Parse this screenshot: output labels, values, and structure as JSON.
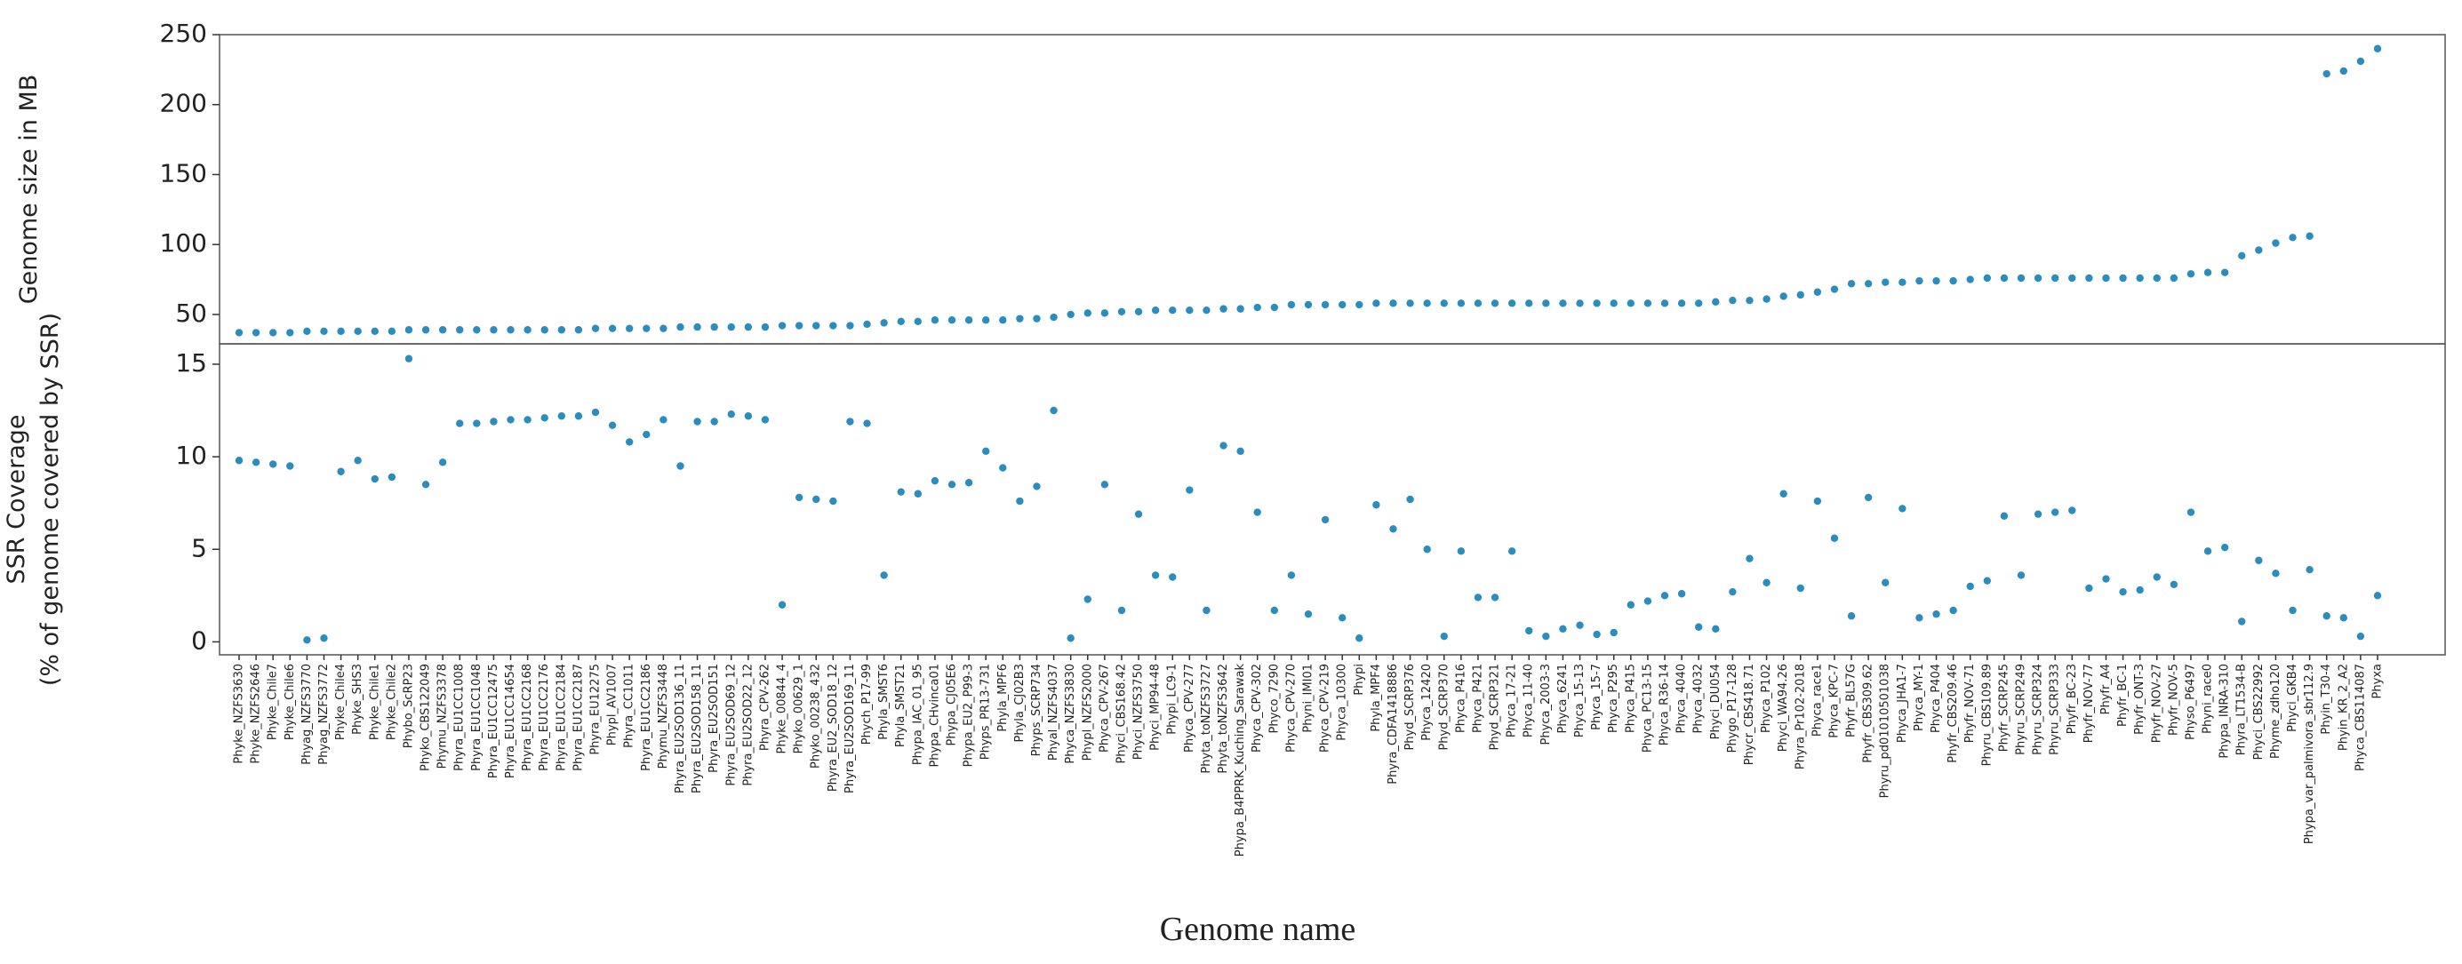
{
  "chart_data": [
    {
      "type": "scatter",
      "ylabel": "Genome size in MB",
      "color": "#2b8cbe",
      "ylim": [
        29,
        250
      ],
      "yticks": [
        50,
        100,
        150,
        200,
        250
      ],
      "values": [
        37,
        37,
        37,
        37,
        38,
        38,
        38,
        38,
        38,
        38,
        39,
        39,
        39,
        39,
        39,
        39,
        39,
        39,
        39,
        39,
        39,
        40,
        40,
        40,
        40,
        40,
        41,
        41,
        41,
        41,
        41,
        41,
        42,
        42,
        42,
        42,
        42,
        43,
        44,
        45,
        45,
        46,
        46,
        46,
        46,
        46,
        47,
        47,
        48,
        50,
        51,
        51,
        52,
        52,
        53,
        53,
        53,
        53,
        54,
        54,
        55,
        55,
        57,
        57,
        57,
        57,
        57,
        58,
        58,
        58,
        58,
        58,
        58,
        58,
        58,
        58,
        58,
        58,
        58,
        58,
        58,
        58,
        58,
        58,
        58,
        58,
        58,
        59,
        60,
        60,
        61,
        63,
        64,
        66,
        68,
        72,
        72,
        73,
        73,
        74,
        74,
        74,
        75,
        76,
        76,
        76,
        76,
        76,
        76,
        76,
        76,
        76,
        76,
        76,
        76,
        79,
        80,
        80,
        92,
        96,
        101,
        105,
        106,
        222,
        224,
        231,
        240
      ]
    },
    {
      "type": "scatter",
      "ylabel": [
        "SSR Coverage",
        "(% of genome covered by SSR)"
      ],
      "xlabel": "Genome name",
      "color": "#2b8cbe",
      "ylim": [
        -0.7,
        16.1
      ],
      "yticks": [
        0,
        5,
        10,
        15
      ],
      "categories": [
        "Phyke_NZFS3630",
        "Phyke_NZFS2646",
        "Phyke_Chile7",
        "Phyke_Chile6",
        "Phyag_NZFS3770",
        "Phyag_NZFS3772",
        "Phyke_Chile4",
        "Phyke_SHS3",
        "Phyke_Chile1",
        "Phyke_Chile2",
        "Phybo_ScRP23",
        "Phyko_CBS122049",
        "Phymu_NZFS3378",
        "Phyra_EU1CC1008",
        "Phyra_EU1CC1048",
        "Phyra_EU1CC12475",
        "Phyra_EU1CC14654",
        "Phyra_EU1CC2168",
        "Phyra_EU1CC2176",
        "Phyra_EU1CC2184",
        "Phyra_EU1CC2187",
        "Phyra_EU12275",
        "Phypl_AV1007",
        "Phyra_CC1011",
        "Phyra_EU1CC2186",
        "Phymu_NZFS3448",
        "Phyra_EU2SOD136_11",
        "Phyra_EU2SOD158_11",
        "Phyra_EU2SOD151",
        "Phyra_EU2SOD69_12",
        "Phyra_EU2SOD22_12",
        "Phyra_CPV-262",
        "Phyke_00844_4",
        "Phyko_00629_1",
        "Phyko_00238_432",
        "Phyra_EU2_SOD18_12",
        "Phyra_EU2SOD169_11",
        "Phych_P17-99",
        "Phyla_SMST6",
        "Phyla_SMST21",
        "Phypa_IAC_01_95",
        "Phypa_CHvinca01",
        "Phypa_CJ05E6",
        "Phypa_EU2_P99-3",
        "Phyps_PR13-731",
        "Phyla_MPF6",
        "Phyla_CJ02B3",
        "Phyps_SCRP734",
        "Phyal_NZFS4037",
        "Phyca_NZFS3830",
        "Phypl_NZFS2000",
        "Phyca_CPV-267",
        "Phyci_CBS168.42",
        "Phyci_NZFS3750",
        "Phyci_MP94-48",
        "Phypi_LC9-1",
        "Phyca_CPV-277",
        "Phyta_toNZFS3727",
        "Phyta_toNZFS3642",
        "Phypa_B4PPRK_Kuching_Sarawak",
        "Phyca_CPV-302",
        "Phyco_7290",
        "Phyca_CPV-270",
        "Phyni_IMI01",
        "Phyca_CPV-219",
        "Phyca_10300",
        "Phypi",
        "Phyla_MPF4",
        "Phyra_CDFA1418886",
        "Phyd_SCRP376",
        "Phyca_12420",
        "Phyd_SCRP370",
        "Phyca_P416",
        "Phyca_P421",
        "Phyd_SCRP321",
        "Phyca_17-21",
        "Phyca_11-40",
        "Phyca_2003-3",
        "Phyca_6241",
        "Phyca_15-13",
        "Phyca_15-7",
        "Phyca_P295",
        "Phyca_P415",
        "Phyca_PC13-15",
        "Phyca_R36-14",
        "Phyca_4040",
        "Phyca_4032",
        "Phyci_DU054",
        "Phygo_P17-128",
        "Phycr_CBS418.71",
        "Phyca_P102",
        "Phyci_WA94.26",
        "Phyra_Pr102-2018",
        "Phyca_race1",
        "Phyca_KPC-7",
        "Phyfr_BL57G",
        "Phyfr_CBS309.62",
        "Phyru_pd01010501038",
        "Phyca_JHA1-7",
        "Phyca_MY-1",
        "Phyca_P404",
        "Phyfr_CBS209.46",
        "Phyfr_NOV-71",
        "Phyru_CBS109.89",
        "Phyfr_SCRP245",
        "Phyru_SCRP249",
        "Phyru_SCRP324",
        "Phyru_SCRP333",
        "Phyfr_BC-23",
        "Phyfr_NOV-77",
        "Phyfr_A4",
        "Phyfr_BC-1",
        "Phyfr_ONT-3",
        "Phyfr_NOV-27",
        "Phyfr_NOV-5",
        "Physo_P6497",
        "Phyni_race0",
        "Phypa_INRA-310",
        "Phyra_LT1534-B",
        "Phyci_CBS22992",
        "Phyme_zdho120",
        "Phyci_GKB4",
        "Phypa_var_palmivora_sbr112.9",
        "Phyin_T30-4",
        "Phyin_KR_2_A2",
        "Phyca_CBS114087",
        "Phyxa"
      ],
      "values": [
        9.8,
        9.7,
        9.6,
        9.5,
        0.1,
        0.2,
        9.2,
        9.8,
        8.8,
        8.9,
        15.3,
        8.5,
        9.7,
        11.8,
        11.8,
        11.9,
        12.0,
        12.0,
        12.1,
        12.2,
        12.2,
        12.4,
        11.7,
        10.8,
        11.2,
        12.0,
        9.5,
        11.9,
        11.9,
        12.3,
        12.2,
        12.0,
        2.0,
        7.8,
        7.7,
        7.6,
        11.9,
        11.8,
        3.6,
        8.1,
        8.0,
        8.7,
        8.5,
        8.6,
        10.3,
        9.4,
        7.6,
        8.4,
        12.5,
        0.2,
        2.3,
        8.5,
        1.7,
        6.9,
        3.6,
        3.5,
        8.2,
        1.7,
        10.6,
        10.3,
        7.0,
        1.7,
        3.6,
        1.5,
        6.6,
        1.3,
        0.2,
        7.4,
        6.1,
        7.7,
        5.0,
        0.3,
        4.9,
        2.4,
        2.4,
        4.9,
        0.6,
        0.3,
        0.7,
        0.9,
        0.4,
        0.5,
        2.0,
        2.2,
        2.5,
        2.6,
        0.8,
        0.7,
        2.7,
        4.5,
        3.2,
        8.0,
        2.9,
        7.6,
        5.6,
        1.4,
        7.8,
        3.2,
        7.2,
        1.3,
        1.5,
        1.7,
        3.0,
        3.3,
        6.8,
        3.6,
        6.9,
        7.0,
        7.1,
        2.9,
        3.4,
        2.7,
        2.8,
        3.5,
        3.1,
        7.0,
        4.9,
        5.1,
        1.1,
        4.4,
        3.7,
        1.7,
        3.9,
        1.4,
        1.3,
        0.3,
        2.5
      ]
    }
  ]
}
